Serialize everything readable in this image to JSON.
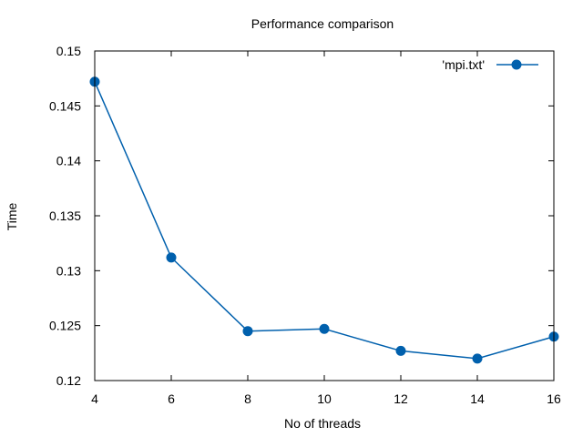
{
  "chart_data": {
    "type": "line",
    "title": "Performance comparison",
    "xlabel": "No of threads",
    "ylabel": "Time",
    "xlim": [
      4,
      16
    ],
    "ylim": [
      0.12,
      0.15
    ],
    "x_ticks": [
      4,
      6,
      8,
      10,
      12,
      14,
      16
    ],
    "y_ticks": [
      0.12,
      0.125,
      0.13,
      0.135,
      0.14,
      0.145,
      0.15
    ],
    "x_tick_labels": [
      "4",
      "6",
      "8",
      "10",
      "12",
      "14",
      "16"
    ],
    "y_tick_labels": [
      "0.12",
      "0.125",
      "0.13",
      "0.135",
      "0.14",
      "0.145",
      "0.15"
    ],
    "grid": false,
    "legend_position": "top-right",
    "series": [
      {
        "name": "'mpi.txt'",
        "color": "#0060ad",
        "marker": "circle",
        "x": [
          4,
          6,
          8,
          10,
          12,
          14,
          16
        ],
        "y": [
          0.1472,
          0.1312,
          0.1245,
          0.1247,
          0.1227,
          0.122,
          0.124
        ]
      }
    ]
  }
}
